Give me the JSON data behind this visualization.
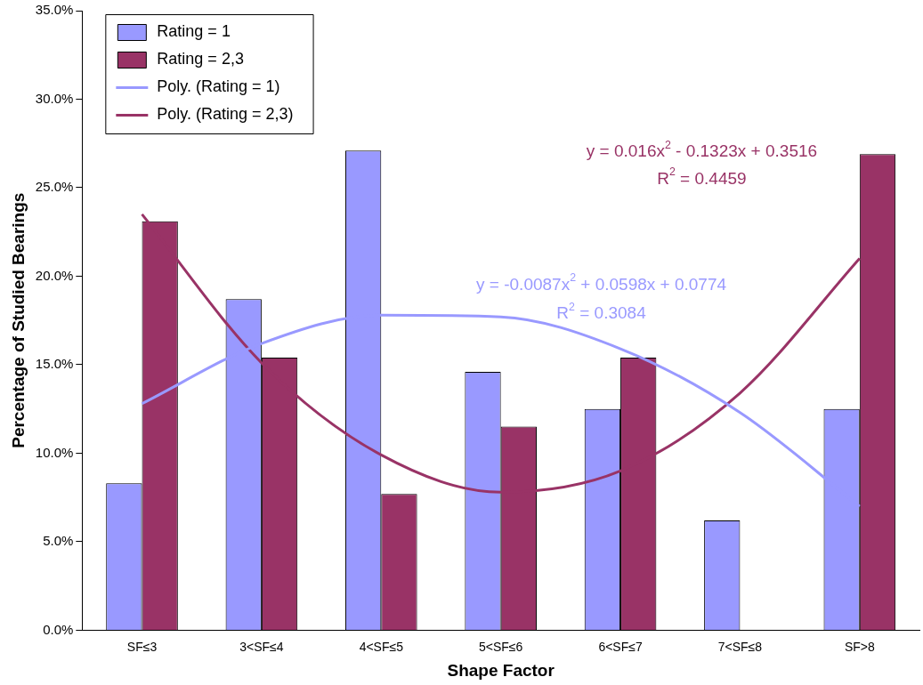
{
  "chart_data": {
    "type": "bar",
    "xlabel": "Shape Factor",
    "ylabel": "Percentage of Studied Bearings",
    "categories": [
      "SF≤3",
      "3<SF≤4",
      "4<SF≤5",
      "5<SF≤6",
      "6<SF≤7",
      "7<SF≤8",
      "SF>8"
    ],
    "series": [
      {
        "name": "Rating = 1",
        "color": "#9999ff",
        "values": [
          8.3,
          18.7,
          27.1,
          14.6,
          12.5,
          6.2,
          12.5
        ]
      },
      {
        "name": "Rating = 2,3",
        "color": "#993366",
        "values": [
          23.1,
          15.4,
          7.7,
          11.5,
          15.4,
          0,
          26.9
        ]
      },
      {
        "name": "Poly. (Rating = 1)",
        "type": "line",
        "color": "#9999ff",
        "values": [
          12.8,
          16.2,
          17.8,
          17.7,
          15.9,
          12.3,
          7.0
        ]
      },
      {
        "name": "Poly. (Rating = 2,3)",
        "type": "line",
        "color": "#993366",
        "values": [
          23.5,
          15.1,
          9.9,
          7.8,
          9.0,
          13.4,
          21.0
        ]
      }
    ],
    "ylim": [
      0,
      35
    ],
    "yticks": [
      {
        "value": 0,
        "label": "0.0%"
      },
      {
        "value": 5,
        "label": "5.0%"
      },
      {
        "value": 10,
        "label": "10.0%"
      },
      {
        "value": 15,
        "label": "15.0%"
      },
      {
        "value": 20,
        "label": "20.0%"
      },
      {
        "value": 25,
        "label": "25.0%"
      },
      {
        "value": 30,
        "label": "30.0%"
      },
      {
        "value": 35,
        "label": "35.0%"
      }
    ],
    "grid": false,
    "legend": "top left",
    "annotations": [
      "y = -0.0087x$^{2}$ + 0.0598x + 0.0774",
      "R$^{2}$ = 0.3084",
      "y = 0.016x$^{2}$ - 0.1323x + 0.3516",
      "R$^{2}$ = 0.4459"
    ]
  }
}
